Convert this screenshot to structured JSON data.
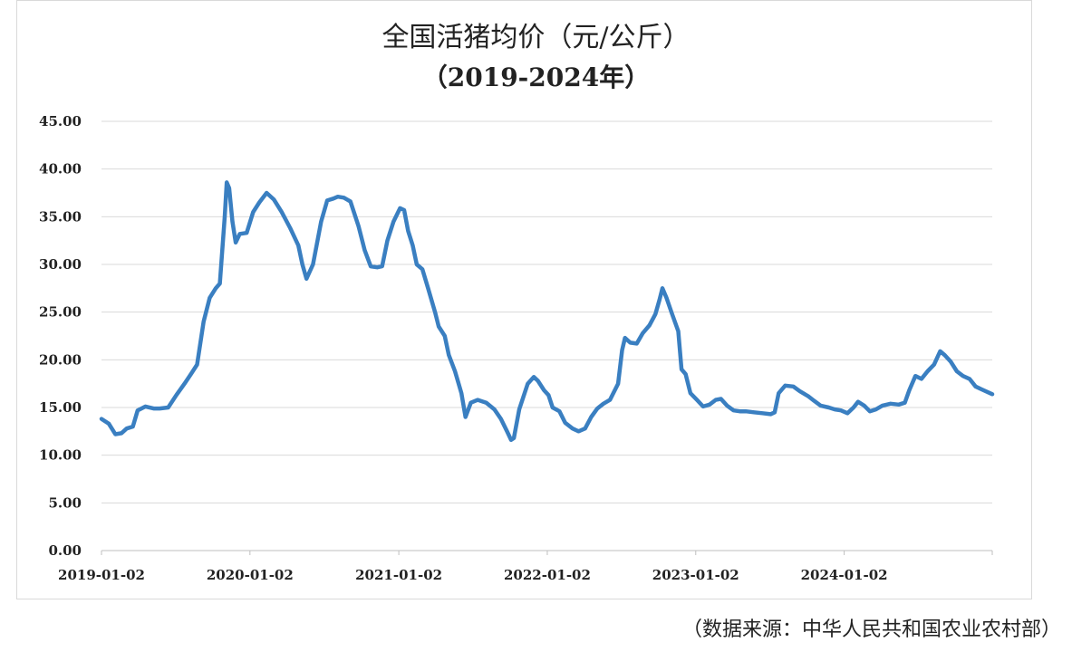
{
  "chart_data": {
    "type": "line",
    "title": "全国活猪均价（元/公斤）",
    "subtitle": "（2019-2024年）",
    "source": "（数据来源：中华人民共和国农业农村部）",
    "xlabel": "",
    "ylabel": "",
    "ylim": [
      0,
      45
    ],
    "yticks": [
      "0.00",
      "5.00",
      "10.00",
      "15.00",
      "20.00",
      "25.00",
      "30.00",
      "35.00",
      "40.00",
      "45.00"
    ],
    "xlim": [
      "2019-01-02",
      "2024-12-31"
    ],
    "xticks": [
      "2019-01-02",
      "2020-01-02",
      "2021-01-02",
      "2022-01-02",
      "2023-01-02",
      "2024-01-02"
    ],
    "grid": "horizontal",
    "color": "#3a7fc1",
    "series": [
      {
        "points": [
          [
            "2019-01-02",
            13.8
          ],
          [
            "2019-01-20",
            13.3
          ],
          [
            "2019-02-05",
            12.2
          ],
          [
            "2019-02-20",
            12.3
          ],
          [
            "2019-03-05",
            12.8
          ],
          [
            "2019-03-20",
            13.0
          ],
          [
            "2019-04-01",
            14.7
          ],
          [
            "2019-04-20",
            15.1
          ],
          [
            "2019-05-10",
            14.9
          ],
          [
            "2019-05-25",
            14.9
          ],
          [
            "2019-06-15",
            15.0
          ],
          [
            "2019-07-05",
            16.3
          ],
          [
            "2019-07-25",
            17.5
          ],
          [
            "2019-08-10",
            18.5
          ],
          [
            "2019-08-25",
            19.5
          ],
          [
            "2019-09-10",
            24.0
          ],
          [
            "2019-09-25",
            26.5
          ],
          [
            "2019-10-10",
            27.5
          ],
          [
            "2019-10-20",
            28.0
          ],
          [
            "2019-11-01",
            35.0
          ],
          [
            "2019-11-06",
            38.6
          ],
          [
            "2019-11-12",
            38.0
          ],
          [
            "2019-11-20",
            34.5
          ],
          [
            "2019-11-28",
            32.3
          ],
          [
            "2019-12-08",
            33.2
          ],
          [
            "2019-12-25",
            33.3
          ],
          [
            "2020-01-10",
            35.5
          ],
          [
            "2020-01-25",
            36.5
          ],
          [
            "2020-02-12",
            37.5
          ],
          [
            "2020-03-01",
            36.8
          ],
          [
            "2020-03-20",
            35.5
          ],
          [
            "2020-04-10",
            33.8
          ],
          [
            "2020-04-30",
            32.0
          ],
          [
            "2020-05-10",
            30.0
          ],
          [
            "2020-05-20",
            28.5
          ],
          [
            "2020-06-05",
            30.0
          ],
          [
            "2020-06-25",
            34.5
          ],
          [
            "2020-07-10",
            36.7
          ],
          [
            "2020-07-25",
            36.9
          ],
          [
            "2020-08-05",
            37.1
          ],
          [
            "2020-08-20",
            37.0
          ],
          [
            "2020-09-05",
            36.6
          ],
          [
            "2020-09-25",
            34.0
          ],
          [
            "2020-10-10",
            31.5
          ],
          [
            "2020-10-25",
            29.8
          ],
          [
            "2020-11-10",
            29.7
          ],
          [
            "2020-11-22",
            29.8
          ],
          [
            "2020-12-05",
            32.5
          ],
          [
            "2020-12-20",
            34.5
          ],
          [
            "2021-01-05",
            35.9
          ],
          [
            "2021-01-15",
            35.7
          ],
          [
            "2021-01-25",
            33.5
          ],
          [
            "2021-02-05",
            32.0
          ],
          [
            "2021-02-15",
            30.0
          ],
          [
            "2021-03-01",
            29.5
          ],
          [
            "2021-03-15",
            27.5
          ],
          [
            "2021-04-01",
            25.0
          ],
          [
            "2021-04-10",
            23.5
          ],
          [
            "2021-04-25",
            22.5
          ],
          [
            "2021-05-05",
            20.5
          ],
          [
            "2021-05-20",
            18.8
          ],
          [
            "2021-06-05",
            16.5
          ],
          [
            "2021-06-15",
            14.0
          ],
          [
            "2021-06-28",
            15.5
          ],
          [
            "2021-07-15",
            15.8
          ],
          [
            "2021-08-05",
            15.5
          ],
          [
            "2021-08-25",
            14.8
          ],
          [
            "2021-09-10",
            13.8
          ],
          [
            "2021-09-25",
            12.5
          ],
          [
            "2021-10-05",
            11.6
          ],
          [
            "2021-10-12",
            11.8
          ],
          [
            "2021-10-25",
            14.8
          ],
          [
            "2021-11-15",
            17.5
          ],
          [
            "2021-11-30",
            18.2
          ],
          [
            "2021-12-10",
            17.8
          ],
          [
            "2021-12-25",
            16.8
          ],
          [
            "2022-01-05",
            16.3
          ],
          [
            "2022-01-15",
            15.0
          ],
          [
            "2022-02-01",
            14.6
          ],
          [
            "2022-02-15",
            13.4
          ],
          [
            "2022-03-05",
            12.8
          ],
          [
            "2022-03-20",
            12.5
          ],
          [
            "2022-04-05",
            12.8
          ],
          [
            "2022-04-20",
            14.0
          ],
          [
            "2022-05-05",
            14.9
          ],
          [
            "2022-05-20",
            15.4
          ],
          [
            "2022-06-05",
            15.8
          ],
          [
            "2022-06-25",
            17.5
          ],
          [
            "2022-07-05",
            21.0
          ],
          [
            "2022-07-12",
            22.3
          ],
          [
            "2022-07-25",
            21.8
          ],
          [
            "2022-08-10",
            21.7
          ],
          [
            "2022-08-25",
            22.8
          ],
          [
            "2022-09-10",
            23.6
          ],
          [
            "2022-09-25",
            24.8
          ],
          [
            "2022-10-05",
            26.3
          ],
          [
            "2022-10-12",
            27.5
          ],
          [
            "2022-10-22",
            26.5
          ],
          [
            "2022-11-05",
            24.8
          ],
          [
            "2022-11-20",
            23.0
          ],
          [
            "2022-11-28",
            19.0
          ],
          [
            "2022-12-08",
            18.5
          ],
          [
            "2022-12-20",
            16.5
          ],
          [
            "2023-01-05",
            15.8
          ],
          [
            "2023-01-20",
            15.1
          ],
          [
            "2023-02-05",
            15.3
          ],
          [
            "2023-02-20",
            15.8
          ],
          [
            "2023-03-05",
            15.9
          ],
          [
            "2023-03-20",
            15.2
          ],
          [
            "2023-04-05",
            14.7
          ],
          [
            "2023-04-20",
            14.6
          ],
          [
            "2023-05-05",
            14.6
          ],
          [
            "2023-05-25",
            14.5
          ],
          [
            "2023-06-15",
            14.4
          ],
          [
            "2023-07-05",
            14.3
          ],
          [
            "2023-07-15",
            14.5
          ],
          [
            "2023-07-25",
            16.5
          ],
          [
            "2023-08-10",
            17.3
          ],
          [
            "2023-08-30",
            17.2
          ],
          [
            "2023-09-15",
            16.7
          ],
          [
            "2023-10-05",
            16.2
          ],
          [
            "2023-10-20",
            15.7
          ],
          [
            "2023-11-05",
            15.2
          ],
          [
            "2023-11-25",
            15.0
          ],
          [
            "2023-12-10",
            14.8
          ],
          [
            "2023-12-25",
            14.7
          ],
          [
            "2024-01-10",
            14.4
          ],
          [
            "2024-01-25",
            15.0
          ],
          [
            "2024-02-05",
            15.6
          ],
          [
            "2024-02-20",
            15.2
          ],
          [
            "2024-03-05",
            14.6
          ],
          [
            "2024-03-20",
            14.8
          ],
          [
            "2024-04-05",
            15.2
          ],
          [
            "2024-04-25",
            15.4
          ],
          [
            "2024-05-15",
            15.3
          ],
          [
            "2024-05-30",
            15.5
          ],
          [
            "2024-06-10",
            16.8
          ],
          [
            "2024-06-25",
            18.3
          ],
          [
            "2024-07-10",
            18.0
          ],
          [
            "2024-07-25",
            18.8
          ],
          [
            "2024-08-10",
            19.5
          ],
          [
            "2024-08-25",
            20.9
          ],
          [
            "2024-09-05",
            20.5
          ],
          [
            "2024-09-20",
            19.8
          ],
          [
            "2024-10-05",
            18.8
          ],
          [
            "2024-10-20",
            18.3
          ],
          [
            "2024-11-05",
            18.0
          ],
          [
            "2024-11-20",
            17.2
          ],
          [
            "2024-12-05",
            16.9
          ],
          [
            "2024-12-31",
            16.4
          ]
        ]
      }
    ]
  }
}
